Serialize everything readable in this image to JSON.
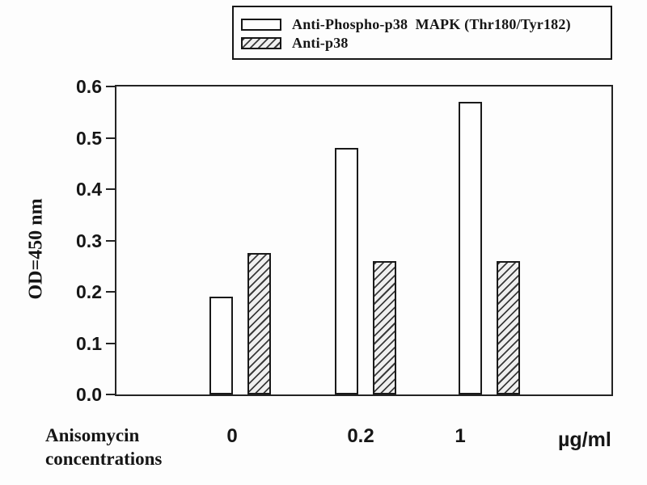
{
  "figure": {
    "background": "#fdfdfd",
    "ink": "#1b1b1b"
  },
  "legend": {
    "items": [
      {
        "label": "Anti-Phospho-p38  MAPK (Thr180/Tyr182)",
        "swatch": "open-bar"
      },
      {
        "label": "Anti-p38",
        "swatch": "hatched-bar"
      }
    ]
  },
  "axis": {
    "x_caption_line1": "Anisomycin",
    "x_caption_line2": "concentrations",
    "unit_label": "µg/ml"
  },
  "chart_data": {
    "type": "bar",
    "title": "",
    "xlabel": "Anisomycin concentrations (µg/ml)",
    "ylabel": "OD=450 nm",
    "categories": [
      "0",
      "0.2",
      "1"
    ],
    "series": [
      {
        "name": "Anti-Phospho-p38 MAPK (Thr180/Tyr182)",
        "pattern": "open",
        "values": [
          0.19,
          0.48,
          0.57
        ]
      },
      {
        "name": "Anti-p38",
        "pattern": "hatched",
        "values": [
          0.275,
          0.26,
          0.26
        ]
      }
    ],
    "ylim": [
      0,
      0.6
    ],
    "ytick_step": 0.1,
    "yticks": [
      "0.0",
      "0.1",
      "0.2",
      "0.3",
      "0.4",
      "0.5",
      "0.6"
    ],
    "grid": false,
    "legend_position": "top-right-outside"
  }
}
